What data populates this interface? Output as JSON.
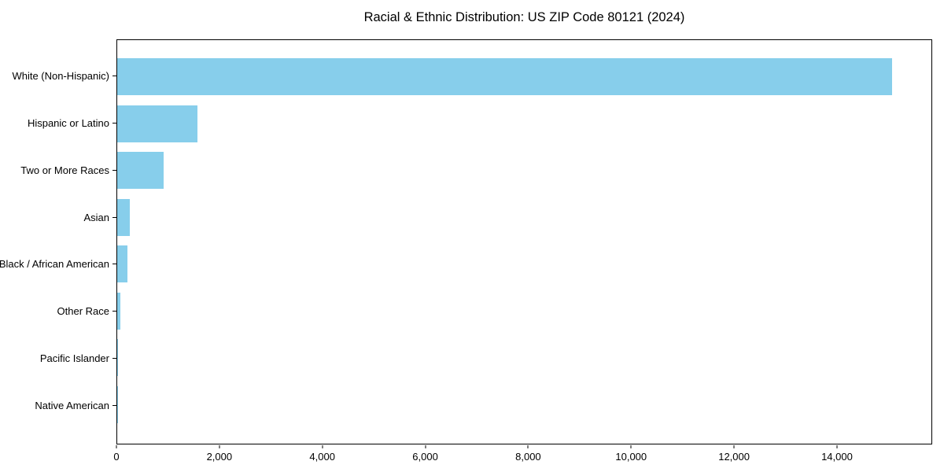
{
  "chart_data": {
    "type": "bar",
    "orientation": "horizontal",
    "title": "Racial & Ethnic Distribution: US ZIP Code 80121 (2024)",
    "categories": [
      "White (Non-Hispanic)",
      "Hispanic or Latino",
      "Two or More Races",
      "Asian",
      "Black / African American",
      "Other Race",
      "Pacific Islander",
      "Native American"
    ],
    "values": [
      15090,
      1560,
      905,
      245,
      205,
      55,
      12,
      6
    ],
    "xlabel": "",
    "ylabel": "",
    "xlim": [
      0,
      15850
    ],
    "xticks": [
      0,
      2000,
      4000,
      6000,
      8000,
      10000,
      12000,
      14000
    ],
    "xtick_labels": [
      "0",
      "2,000",
      "4,000",
      "6,000",
      "8,000",
      "10,000",
      "12,000",
      "14,000"
    ],
    "bar_color": "#87CEEB",
    "axis_color": "#000000",
    "grid": false,
    "legend": "none"
  }
}
